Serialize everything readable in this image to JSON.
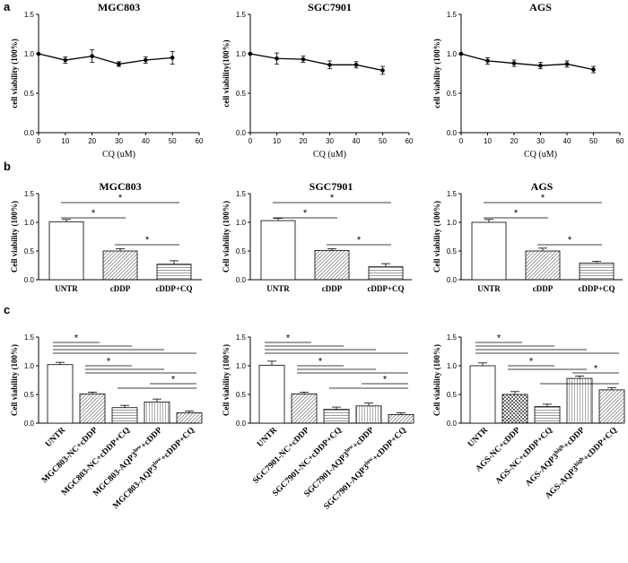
{
  "colors": {
    "ink": "#000000",
    "paper": "#ffffff"
  },
  "chart_data": [
    {
      "panel": "a",
      "type": "line",
      "title": "MGC803",
      "xlabel": "CQ  (uM)",
      "ylabel": "cell viability (100%)",
      "x": [
        0,
        10,
        20,
        30,
        40,
        50
      ],
      "y": [
        1.0,
        0.92,
        0.97,
        0.87,
        0.92,
        0.95
      ],
      "err": [
        0,
        0.04,
        0.08,
        0.03,
        0.04,
        0.08
      ],
      "xlim": [
        0,
        60
      ],
      "ylim": [
        0,
        1.5
      ],
      "xticks": [
        "0",
        "10",
        "20",
        "30",
        "40",
        "50",
        "60"
      ],
      "yticks": [
        "0.0",
        "0.5",
        "1.0",
        "1.5"
      ]
    },
    {
      "panel": "a",
      "type": "line",
      "title": "SGC7901",
      "xlabel": "CQ  (uM)",
      "ylabel": "cell viability(100%)",
      "x": [
        0,
        10,
        20,
        30,
        40,
        50
      ],
      "y": [
        1.0,
        0.94,
        0.93,
        0.86,
        0.86,
        0.79
      ],
      "err": [
        0,
        0.07,
        0.04,
        0.05,
        0.04,
        0.05
      ],
      "xlim": [
        0,
        60
      ],
      "ylim": [
        0,
        1.5
      ],
      "xticks": [
        "0",
        "10",
        "20",
        "30",
        "40",
        "50",
        "60"
      ],
      "yticks": [
        "0.0",
        "0.5",
        "1.0",
        "1.5"
      ]
    },
    {
      "panel": "a",
      "type": "line",
      "title": "AGS",
      "xlabel": "CQ  (uM)",
      "ylabel": "cell viability (100%)",
      "x": [
        0,
        10,
        20,
        30,
        40,
        50
      ],
      "y": [
        1.0,
        0.91,
        0.88,
        0.85,
        0.87,
        0.8
      ],
      "err": [
        0,
        0.04,
        0.04,
        0.04,
        0.04,
        0.04
      ],
      "xlim": [
        0,
        60
      ],
      "ylim": [
        0,
        1.5
      ],
      "xticks": [
        "0",
        "10",
        "20",
        "30",
        "40",
        "50",
        "60"
      ],
      "yticks": [
        "0.0",
        "0.5",
        "1.0",
        "1.5"
      ]
    },
    {
      "panel": "b",
      "type": "bar",
      "title": "MGC803",
      "ylabel": "Cell viability (100%)",
      "categories": [
        "UNTR",
        "cDDP",
        "cDDP+CQ"
      ],
      "values": [
        1.01,
        0.5,
        0.27
      ],
      "err": [
        0.04,
        0.04,
        0.06
      ],
      "patterns": [
        "none",
        "diag",
        "horiz"
      ],
      "ylim": [
        0,
        1.5
      ],
      "yticks": [
        "0.0",
        "0.5",
        "1.0",
        "1.5"
      ],
      "significance": [
        {
          "from": 0,
          "to": 2,
          "label": "*"
        },
        {
          "from": 0,
          "to": 1,
          "label": "*"
        },
        {
          "from": 1,
          "to": 2,
          "label": "*"
        }
      ]
    },
    {
      "panel": "b",
      "type": "bar",
      "title": "SGC7901",
      "ylabel": "Cell viability (100%)",
      "categories": [
        "UNTR",
        "cDDP",
        "cDDP+CQ"
      ],
      "values": [
        1.03,
        0.51,
        0.23
      ],
      "err": [
        0.04,
        0.03,
        0.05
      ],
      "patterns": [
        "none",
        "diag",
        "horiz"
      ],
      "ylim": [
        0,
        1.5
      ],
      "yticks": [
        "0.0",
        "0.5",
        "1.0",
        "1.5"
      ],
      "significance": [
        {
          "from": 0,
          "to": 2,
          "label": "*"
        },
        {
          "from": 0,
          "to": 1,
          "label": "*"
        },
        {
          "from": 1,
          "to": 2,
          "label": "*"
        }
      ]
    },
    {
      "panel": "b",
      "type": "bar",
      "title": "AGS",
      "ylabel": "Cell viability (100%)",
      "categories": [
        "UNTR",
        "cDDP",
        "cDDP+CQ"
      ],
      "values": [
        1.0,
        0.5,
        0.29
      ],
      "err": [
        0.05,
        0.05,
        0.03
      ],
      "patterns": [
        "none",
        "diag",
        "horiz"
      ],
      "ylim": [
        0,
        1.5
      ],
      "yticks": [
        "0.0",
        "0.5",
        "1.0",
        "1.5"
      ],
      "significance": [
        {
          "from": 0,
          "to": 2,
          "label": "*"
        },
        {
          "from": 0,
          "to": 1,
          "label": "*"
        },
        {
          "from": 1,
          "to": 2,
          "label": "*"
        }
      ]
    },
    {
      "panel": "c",
      "type": "bar",
      "ylabel": "Cell viability (100%)",
      "categories": [
        {
          "main": "UNTR"
        },
        {
          "main": "MGC803-NC+cDDP"
        },
        {
          "main": "MGC803-NC+cDDP+CQ"
        },
        {
          "main": "MGC803-AQP3",
          "sup": "low",
          "rest": "+cDDP"
        },
        {
          "main": "MGC803-AQP3",
          "sup": "low",
          "rest": "+cDDP+CQ"
        }
      ],
      "values": [
        1.02,
        0.51,
        0.27,
        0.37,
        0.18
      ],
      "err": [
        0.04,
        0.03,
        0.04,
        0.05,
        0.03
      ],
      "patterns": [
        "none",
        "diag",
        "horiz",
        "vert",
        "diag"
      ],
      "ylim": [
        0,
        1.5
      ],
      "yticks": [
        "0.0",
        "0.5",
        "1.0",
        "1.5"
      ],
      "significance": [
        {
          "from": 0,
          "to": 1,
          "label": "*"
        },
        {
          "from": 0,
          "to": 2,
          "label": ""
        },
        {
          "from": 0,
          "to": 3,
          "label": ""
        },
        {
          "from": 0,
          "to": 4,
          "label": ""
        },
        {
          "from": 1,
          "to": 2,
          "label": "*"
        },
        {
          "from": 1,
          "to": 3,
          "label": ""
        },
        {
          "from": 1,
          "to": 4,
          "label": ""
        },
        {
          "from": 3,
          "to": 4,
          "label": "*"
        },
        {
          "from": 2,
          "to": 4,
          "label": ""
        }
      ]
    },
    {
      "panel": "c",
      "type": "bar",
      "ylabel": "Cell viability (100%)",
      "categories": [
        {
          "main": "UNTR"
        },
        {
          "main": "SGC7901-NC+cDDP"
        },
        {
          "main": "SGC7901-NC+cDDP+CQ"
        },
        {
          "main": "SGC7901-AQP3",
          "sup": "low",
          "rest": "+cDDP"
        },
        {
          "main": "SGC7901-AQP3",
          "sup": "low",
          "rest": "+cDDP+CQ"
        }
      ],
      "values": [
        1.01,
        0.51,
        0.24,
        0.3,
        0.15
      ],
      "err": [
        0.07,
        0.03,
        0.04,
        0.05,
        0.03
      ],
      "patterns": [
        "none",
        "diag",
        "horiz",
        "vert",
        "diag"
      ],
      "ylim": [
        0,
        1.5
      ],
      "yticks": [
        "0.0",
        "0.5",
        "1.0",
        "1.5"
      ],
      "significance": [
        {
          "from": 0,
          "to": 1,
          "label": "*"
        },
        {
          "from": 0,
          "to": 2,
          "label": ""
        },
        {
          "from": 0,
          "to": 3,
          "label": ""
        },
        {
          "from": 0,
          "to": 4,
          "label": ""
        },
        {
          "from": 1,
          "to": 2,
          "label": "*"
        },
        {
          "from": 1,
          "to": 3,
          "label": ""
        },
        {
          "from": 1,
          "to": 4,
          "label": ""
        },
        {
          "from": 3,
          "to": 4,
          "label": "*"
        },
        {
          "from": 2,
          "to": 4,
          "label": ""
        }
      ]
    },
    {
      "panel": "c",
      "type": "bar",
      "ylabel": "Cell viability (100%)",
      "categories": [
        {
          "main": "UNTR"
        },
        {
          "main": "AGS-NC+cDDP"
        },
        {
          "main": "AGS-NC+cDDP+CQ"
        },
        {
          "main": "AGS-AQP3",
          "sup": "high",
          "rest": "+cDDP"
        },
        {
          "main": "AGS-AQP3",
          "sup": "high",
          "rest": "+cDDP+CQ"
        }
      ],
      "values": [
        1.0,
        0.5,
        0.29,
        0.78,
        0.58
      ],
      "err": [
        0.05,
        0.05,
        0.04,
        0.04,
        0.04
      ],
      "patterns": [
        "none",
        "check",
        "horiz",
        "vert",
        "diag"
      ],
      "ylim": [
        0,
        1.5
      ],
      "yticks": [
        "0.0",
        "0.5",
        "1.0",
        "1.5"
      ],
      "significance": [
        {
          "from": 0,
          "to": 1,
          "label": "*"
        },
        {
          "from": 0,
          "to": 2,
          "label": ""
        },
        {
          "from": 0,
          "to": 3,
          "label": ""
        },
        {
          "from": 0,
          "to": 4,
          "label": ""
        },
        {
          "from": 1,
          "to": 2,
          "label": "*"
        },
        {
          "from": 1,
          "to": 3,
          "label": ""
        },
        {
          "from": 3,
          "to": 4,
          "label": "*"
        },
        {
          "from": 2,
          "to": 4,
          "label": ""
        }
      ]
    }
  ],
  "panel_labels": [
    "a",
    "b",
    "c"
  ]
}
